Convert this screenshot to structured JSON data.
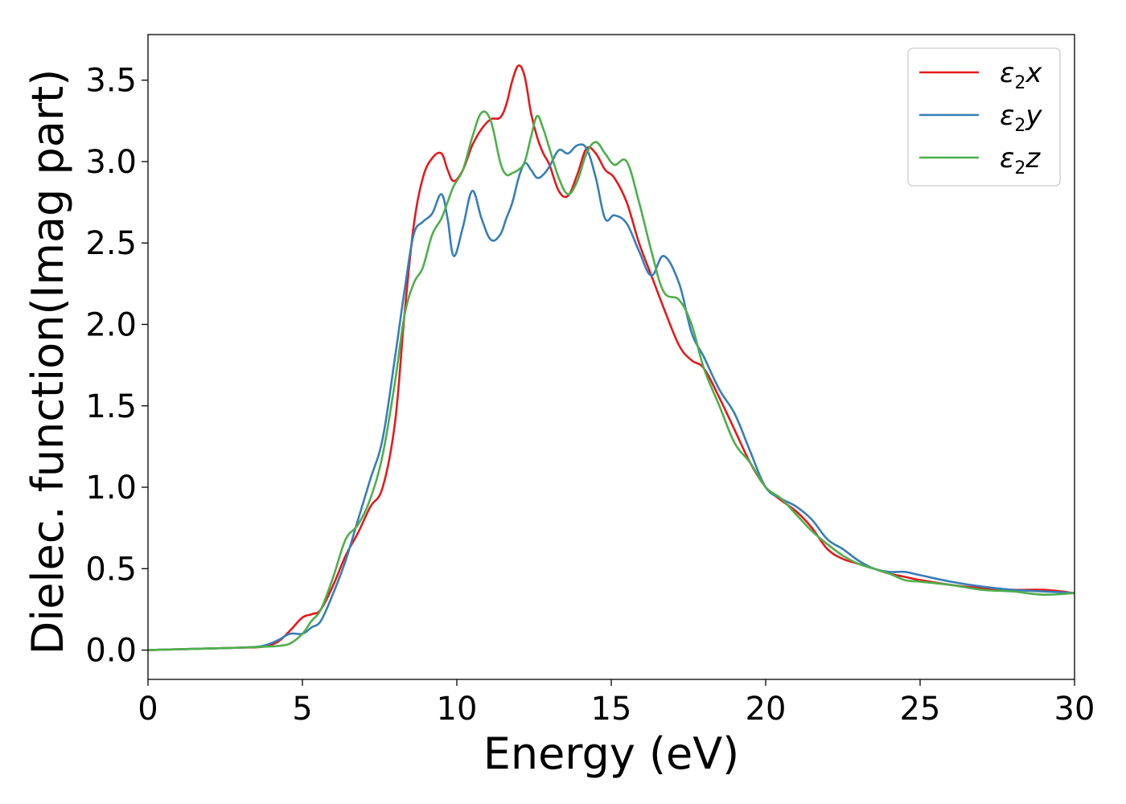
{
  "chart_data": {
    "type": "line",
    "xlabel": "Energy (eV)",
    "ylabel": "Dielec. function(Imag part)",
    "xlim": [
      0,
      30
    ],
    "ylim": [
      -0.18,
      3.78
    ],
    "xticks": [
      "0",
      "5",
      "10",
      "15",
      "20",
      "25",
      "30"
    ],
    "yticks": [
      "0.0",
      "0.5",
      "1.0",
      "1.5",
      "2.0",
      "2.5",
      "3.0",
      "3.5"
    ],
    "xtick_values": [
      0,
      5,
      10,
      15,
      20,
      25,
      30
    ],
    "ytick_values": [
      0.0,
      0.5,
      1.0,
      1.5,
      2.0,
      2.5,
      3.0,
      3.5
    ],
    "grid": false,
    "legend_position": "top-right",
    "series": [
      {
        "name": "ε2x",
        "name_main": "ε",
        "name_sub": "2",
        "name_tail": "x",
        "color": "#e41a1c",
        "x": [
          0,
          1,
          2,
          3,
          3.7,
          4.2,
          4.6,
          5.0,
          5.3,
          5.6,
          6.0,
          6.4,
          6.8,
          7.2,
          7.6,
          8.0,
          8.3,
          8.6,
          8.9,
          9.2,
          9.5,
          9.7,
          9.9,
          10.2,
          10.5,
          10.8,
          11.1,
          11.4,
          11.6,
          11.8,
          12.0,
          12.2,
          12.4,
          12.6,
          12.8,
          13.0,
          13.3,
          13.6,
          13.9,
          14.2,
          14.5,
          14.8,
          15.1,
          15.5,
          15.9,
          16.3,
          16.7,
          17.2,
          17.6,
          18.0,
          18.5,
          19.0,
          19.5,
          20.0,
          20.5,
          21.0,
          21.5,
          22.0,
          22.5,
          23.0,
          23.5,
          24.0,
          24.5,
          25.0,
          26.0,
          27.0,
          28.0,
          29.0,
          30.0
        ],
        "y": [
          0.0,
          0.005,
          0.01,
          0.015,
          0.02,
          0.05,
          0.12,
          0.2,
          0.22,
          0.25,
          0.4,
          0.58,
          0.72,
          0.88,
          1.0,
          1.4,
          2.05,
          2.6,
          2.9,
          3.02,
          3.05,
          2.95,
          2.88,
          2.95,
          3.1,
          3.2,
          3.26,
          3.27,
          3.35,
          3.5,
          3.59,
          3.52,
          3.3,
          3.15,
          3.05,
          2.98,
          2.82,
          2.79,
          2.92,
          3.08,
          3.05,
          2.95,
          2.9,
          2.75,
          2.5,
          2.3,
          2.1,
          1.87,
          1.78,
          1.73,
          1.55,
          1.35,
          1.15,
          1.0,
          0.92,
          0.85,
          0.75,
          0.62,
          0.56,
          0.53,
          0.5,
          0.47,
          0.45,
          0.43,
          0.4,
          0.38,
          0.37,
          0.37,
          0.35
        ]
      },
      {
        "name": "ε2y",
        "name_main": "ε",
        "name_sub": "2",
        "name_tail": "y",
        "color": "#377eb8",
        "x": [
          0,
          1,
          2,
          3,
          3.7,
          4.2,
          4.6,
          5.0,
          5.3,
          5.6,
          6.0,
          6.4,
          6.8,
          7.2,
          7.6,
          8.0,
          8.3,
          8.6,
          8.9,
          9.2,
          9.5,
          9.7,
          9.9,
          10.2,
          10.5,
          10.8,
          11.1,
          11.4,
          11.6,
          11.8,
          12.0,
          12.2,
          12.4,
          12.6,
          12.8,
          13.0,
          13.3,
          13.6,
          13.9,
          14.2,
          14.5,
          14.8,
          15.1,
          15.5,
          15.9,
          16.3,
          16.7,
          17.2,
          17.6,
          18.0,
          18.5,
          19.0,
          19.5,
          20.0,
          20.5,
          21.0,
          21.5,
          22.0,
          22.5,
          23.0,
          23.5,
          24.0,
          24.5,
          25.0,
          26.0,
          27.0,
          28.0,
          29.0,
          30.0
        ],
        "y": [
          0.0,
          0.005,
          0.01,
          0.015,
          0.025,
          0.06,
          0.1,
          0.1,
          0.14,
          0.18,
          0.35,
          0.55,
          0.8,
          1.05,
          1.3,
          1.8,
          2.2,
          2.55,
          2.63,
          2.68,
          2.8,
          2.65,
          2.42,
          2.6,
          2.82,
          2.65,
          2.52,
          2.55,
          2.65,
          2.75,
          2.9,
          2.99,
          2.95,
          2.9,
          2.92,
          2.97,
          3.07,
          3.05,
          3.1,
          3.08,
          2.9,
          2.65,
          2.67,
          2.62,
          2.45,
          2.3,
          2.42,
          2.25,
          1.95,
          1.8,
          1.6,
          1.45,
          1.22,
          1.0,
          0.93,
          0.88,
          0.8,
          0.68,
          0.62,
          0.55,
          0.5,
          0.48,
          0.48,
          0.46,
          0.42,
          0.39,
          0.37,
          0.36,
          0.35
        ]
      },
      {
        "name": "ε2z",
        "name_main": "ε",
        "name_sub": "2",
        "name_tail": "z",
        "color": "#4daf4a",
        "x": [
          0,
          1,
          2,
          3,
          3.7,
          4.2,
          4.6,
          5.0,
          5.3,
          5.6,
          6.0,
          6.4,
          6.8,
          7.2,
          7.6,
          8.0,
          8.3,
          8.6,
          8.9,
          9.2,
          9.5,
          9.7,
          9.9,
          10.2,
          10.5,
          10.8,
          11.1,
          11.4,
          11.6,
          11.8,
          12.0,
          12.2,
          12.4,
          12.6,
          12.8,
          13.0,
          13.3,
          13.6,
          13.9,
          14.2,
          14.5,
          14.8,
          15.1,
          15.5,
          15.9,
          16.3,
          16.7,
          17.2,
          17.6,
          18.0,
          18.5,
          19.0,
          19.5,
          20.0,
          20.5,
          21.0,
          21.5,
          22.0,
          22.5,
          23.0,
          23.5,
          24.0,
          24.5,
          25.0,
          26.0,
          27.0,
          28.0,
          29.0,
          30.0
        ],
        "y": [
          0.0,
          0.005,
          0.01,
          0.015,
          0.02,
          0.025,
          0.04,
          0.1,
          0.18,
          0.25,
          0.45,
          0.68,
          0.77,
          0.93,
          1.2,
          1.65,
          2.05,
          2.25,
          2.35,
          2.55,
          2.65,
          2.75,
          2.85,
          2.95,
          3.15,
          3.3,
          3.25,
          3.0,
          2.92,
          2.93,
          2.95,
          3.0,
          3.15,
          3.28,
          3.2,
          3.08,
          2.9,
          2.8,
          2.88,
          3.05,
          3.12,
          3.05,
          2.98,
          3.0,
          2.75,
          2.45,
          2.2,
          2.15,
          2.0,
          1.73,
          1.5,
          1.27,
          1.15,
          1.0,
          0.93,
          0.83,
          0.73,
          0.65,
          0.58,
          0.53,
          0.5,
          0.47,
          0.43,
          0.42,
          0.4,
          0.37,
          0.36,
          0.34,
          0.35
        ]
      }
    ]
  }
}
